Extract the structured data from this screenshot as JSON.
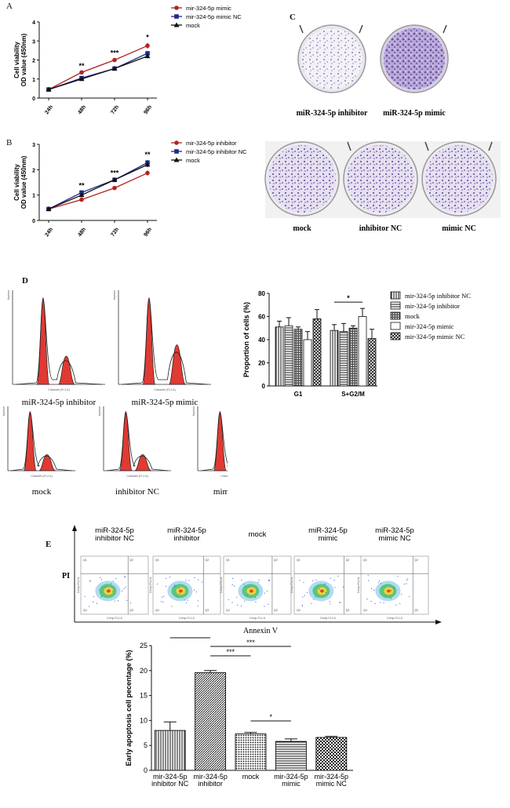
{
  "panels": {
    "A": {
      "letter": "A"
    },
    "B": {
      "letter": "B"
    },
    "C": {
      "letter": "C"
    },
    "D": {
      "letter": "D"
    },
    "E": {
      "letter": "E"
    }
  },
  "chart_data": [
    {
      "id": "A",
      "type": "line",
      "title": "",
      "ylabel_line1": "Cell viability",
      "ylabel_line2": "OD value (450nm)",
      "xlabel": "",
      "categories": [
        "24h",
        "48h",
        "72h",
        "96h"
      ],
      "ylim": [
        0,
        4
      ],
      "yticks": [
        "0",
        "1",
        "2",
        "3",
        "4"
      ],
      "series": [
        {
          "name": "mir-324-5p mimic",
          "values": [
            0.45,
            1.35,
            2.0,
            2.75
          ],
          "errors": [
            0.03,
            0.05,
            0.08,
            0.15
          ],
          "color": "#b22222",
          "marker": "circle"
        },
        {
          "name": "mir-324-5p mimic NC",
          "values": [
            0.45,
            1.05,
            1.55,
            2.35
          ],
          "errors": [
            0.03,
            0.05,
            0.05,
            0.12
          ],
          "color": "#1f2a8a",
          "marker": "square"
        },
        {
          "name": "mock",
          "values": [
            0.45,
            1.0,
            1.55,
            2.2
          ],
          "errors": [
            0.03,
            0.05,
            0.05,
            0.1
          ],
          "color": "#111111",
          "marker": "triangle"
        }
      ],
      "annotations": [
        "",
        "**",
        "***",
        "*"
      ]
    },
    {
      "id": "B",
      "type": "line",
      "title": "",
      "ylabel_line1": "Cell viability",
      "ylabel_line2": "OD value (450nm)",
      "xlabel": "",
      "categories": [
        "24h",
        "48h",
        "72h",
        "96h"
      ],
      "ylim": [
        0,
        3
      ],
      "yticks": [
        "0",
        "1",
        "2",
        "3"
      ],
      "series": [
        {
          "name": "mir-324-5p inhibitor",
          "values": [
            0.45,
            0.82,
            1.28,
            1.87
          ],
          "errors": [
            0.03,
            0.08,
            0.05,
            0.1
          ],
          "color": "#b22222",
          "marker": "circle"
        },
        {
          "name": "mir-324-5p inhibitor NC",
          "values": [
            0.45,
            1.1,
            1.6,
            2.28
          ],
          "errors": [
            0.03,
            0.06,
            0.06,
            0.1
          ],
          "color": "#1f2a8a",
          "marker": "square"
        },
        {
          "name": "mock",
          "values": [
            0.45,
            1.0,
            1.6,
            2.2
          ],
          "errors": [
            0.03,
            0.05,
            0.05,
            0.1
          ],
          "color": "#111111",
          "marker": "triangle"
        }
      ],
      "annotations": [
        "",
        "**",
        "***",
        "**"
      ]
    },
    {
      "id": "D",
      "type": "bar",
      "title": "",
      "ylabel": "Proportion of cells (%)",
      "xlabel": "",
      "categories": [
        "G1",
        "S+G2/M"
      ],
      "ylim": [
        0,
        80
      ],
      "yticks": [
        "0",
        "20",
        "40",
        "60",
        "80"
      ],
      "series": [
        {
          "name": "mir-324-5p inhibitor NC",
          "values": [
            51,
            48
          ],
          "errors": [
            5,
            5
          ],
          "pattern": "vlines"
        },
        {
          "name": "mir-324-5p inhibitor",
          "values": [
            52,
            47
          ],
          "errors": [
            7,
            7
          ],
          "pattern": "hlines"
        },
        {
          "name": "mock",
          "values": [
            49,
            50
          ],
          "errors": [
            2,
            2
          ],
          "pattern": "grid"
        },
        {
          "name": "mir-324-5p mimic",
          "values": [
            40,
            60
          ],
          "errors": [
            7,
            7
          ],
          "pattern": "white"
        },
        {
          "name": "mir-324-5p mimic NC",
          "values": [
            58,
            41
          ],
          "errors": [
            8,
            8
          ],
          "pattern": "cross"
        }
      ],
      "significance": [
        {
          "label": "*",
          "group": "S+G2/M",
          "from": 0,
          "to": 3
        }
      ]
    },
    {
      "id": "E",
      "type": "bar",
      "title": "",
      "ylabel": "Early apoptosis cell pecentage (%)",
      "xlabel": "",
      "categories": [
        [
          "mir-324-5p",
          "inhibitor NC"
        ],
        [
          "mir-324-5p",
          "inhibitor"
        ],
        [
          "mock"
        ],
        [
          "mir-324-5p",
          "mimic"
        ],
        [
          "mir-324-5p",
          "mimic NC"
        ]
      ],
      "ylim": [
        0,
        25
      ],
      "yticks": [
        "0",
        "5",
        "10",
        "15",
        "20",
        "25"
      ],
      "values": [
        8.0,
        19.6,
        7.3,
        5.8,
        6.6
      ],
      "errors": [
        1.7,
        0.4,
        0.3,
        0.5,
        0.2
      ],
      "patterns": [
        "vlines",
        "diag",
        "dots",
        "hlines",
        "checker"
      ],
      "significance": [
        {
          "label": "*",
          "from": 0,
          "to": 1
        },
        {
          "label": "***",
          "from": 1,
          "to": 3
        },
        {
          "label": "***",
          "from": 1,
          "to": 2
        },
        {
          "label": "*",
          "from": 2,
          "to": 3
        }
      ]
    }
  ],
  "colony_c": {
    "top_labels": [
      "miR-324-5p inhibitor",
      "miR-324-5p mimic"
    ],
    "bottom_labels": [
      "mock",
      "inhibitor NC",
      "mimic NC"
    ]
  },
  "histograms_d": {
    "top_labels": [
      "miR-324-5p inhibitor",
      "miR-324-5p mimic"
    ],
    "bottom_labels": [
      "mock",
      "inhibitor NC",
      "mimic NC"
    ],
    "axis_x": "Channels (FL2-A)",
    "axis_y": "Number"
  },
  "flow_e": {
    "labels": [
      [
        "miR-324-5p",
        "inhibitor NC"
      ],
      [
        "miR-324-5p",
        "inhibitor"
      ],
      [
        "mock"
      ],
      [
        "miR-324-5p",
        "mimic"
      ],
      [
        "miR-324-5p",
        "mimic NC"
      ]
    ],
    "y_axis": "PI",
    "x_axis": "Annexin V",
    "plot_x_axis": "Comp-FL1-A",
    "plot_y_axis": "Comp-FL2-A",
    "quadrants": [
      [
        "Q1",
        "Q2",
        "Q4",
        "Q3"
      ],
      [
        "Q1",
        "Q2",
        "Q4",
        "Q3"
      ],
      [
        "Q1",
        "Q2",
        "Q4",
        "Q3"
      ],
      [
        "Q1",
        "Q2",
        "Q4",
        "Q3"
      ],
      [
        "Q1",
        "Q2",
        "Q4",
        "Q3"
      ]
    ]
  }
}
